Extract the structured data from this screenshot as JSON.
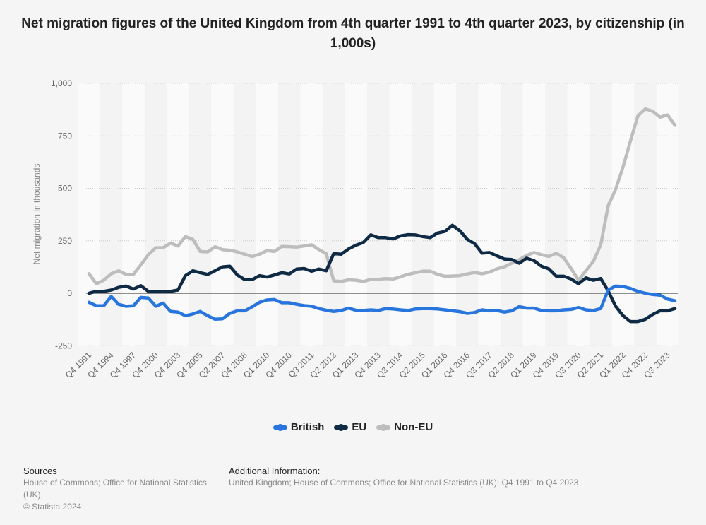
{
  "chart_data": {
    "type": "line",
    "title": "Net migration figures of the United Kingdom from 4th quarter 1991 to 4th quarter 2023, by citizenship (in 1,000s)",
    "xlabel": "",
    "ylabel": "Net migration in thousands",
    "ylim": [
      -250,
      1000
    ],
    "yticks": [
      -250,
      0,
      250,
      500,
      750,
      1000
    ],
    "ytick_labels": [
      "-250",
      "0",
      "250",
      "500",
      "750",
      "1,000"
    ],
    "xtick_labels": [
      "Q4 1991",
      "Q4 1994",
      "Q4 1997",
      "Q4 2000",
      "Q4 2003",
      "Q4 2005",
      "Q2 2007",
      "Q4 2008",
      "Q1 2010",
      "Q4 2010",
      "Q3 2011",
      "Q2 2012",
      "Q1 2013",
      "Q4 2013",
      "Q3 2014",
      "Q2 2015",
      "Q1 2016",
      "Q4 2016",
      "Q3 2017",
      "Q2 2018",
      "Q1 2019",
      "Q4 2019",
      "Q3 2020",
      "Q2 2021",
      "Q1 2022",
      "Q4 2022",
      "Q3 2023"
    ],
    "xtick_every": 3,
    "grid": true,
    "legend_position": "bottom",
    "series": [
      {
        "name": "British",
        "color": "#2876dd",
        "values": [
          -43,
          -60,
          -60,
          -15,
          -53,
          -62,
          -60,
          -20,
          -23,
          -62,
          -47,
          -87,
          -90,
          -107,
          -99,
          -87,
          -107,
          -124,
          -122,
          -96,
          -84,
          -84,
          -65,
          -43,
          -32,
          -30,
          -45,
          -45,
          -53,
          -59,
          -62,
          -73,
          -81,
          -87,
          -82,
          -71,
          -81,
          -82,
          -79,
          -82,
          -73,
          -75,
          -79,
          -82,
          -75,
          -73,
          -73,
          -75,
          -79,
          -84,
          -88,
          -96,
          -92,
          -79,
          -84,
          -82,
          -90,
          -84,
          -64,
          -71,
          -71,
          -82,
          -84,
          -84,
          -79,
          -77,
          -68,
          -79,
          -82,
          -73,
          15,
          34,
          32,
          23,
          9,
          0,
          -6,
          -9,
          -28,
          -36
        ]
      },
      {
        "name": "EU",
        "color": "#0f2a45",
        "values": [
          0,
          9,
          9,
          15,
          28,
          34,
          20,
          36,
          9,
          9,
          9,
          9,
          15,
          84,
          107,
          98,
          90,
          107,
          126,
          129,
          87,
          65,
          65,
          84,
          77,
          87,
          98,
          92,
          115,
          118,
          105,
          115,
          107,
          189,
          186,
          211,
          229,
          242,
          278,
          265,
          265,
          259,
          273,
          279,
          278,
          270,
          265,
          287,
          295,
          324,
          298,
          257,
          236,
          191,
          194,
          178,
          163,
          161,
          143,
          167,
          155,
          129,
          116,
          81,
          81,
          68,
          45,
          73,
          62,
          70,
          11,
          -62,
          -107,
          -135,
          -135,
          -124,
          -101,
          -84,
          -84,
          -73
        ]
      },
      {
        "name": "Non-EU",
        "color": "#bdbdbd",
        "values": [
          93,
          45,
          62,
          93,
          107,
          90,
          90,
          135,
          184,
          217,
          217,
          239,
          225,
          270,
          257,
          199,
          197,
          222,
          208,
          205,
          197,
          186,
          175,
          186,
          203,
          199,
          223,
          222,
          220,
          225,
          231,
          208,
          188,
          59,
          56,
          64,
          62,
          56,
          66,
          66,
          70,
          68,
          78,
          90,
          98,
          105,
          105,
          90,
          81,
          82,
          84,
          92,
          99,
          93,
          101,
          116,
          126,
          143,
          160,
          180,
          194,
          184,
          175,
          191,
          169,
          118,
          62,
          107,
          152,
          231,
          417,
          495,
          602,
          726,
          845,
          878,
          867,
          839,
          850,
          800
        ]
      }
    ]
  },
  "footer": {
    "sources_title": "Sources",
    "sources_text": "House of Commons; Office for National Statistics (UK)",
    "copyright": "© Statista 2024",
    "additional_title": "Additional Information:",
    "additional_text": "United Kingdom; House of Commons; Office for National Statistics (UK); Q4 1991 to Q4 2023"
  }
}
